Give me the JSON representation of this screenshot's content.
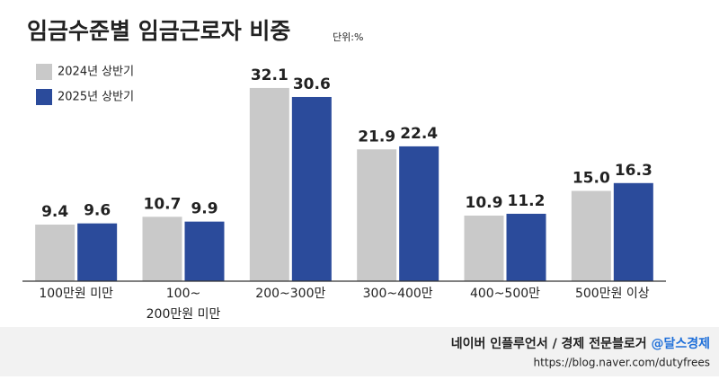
{
  "chart_data": {
    "type": "bar",
    "title": "임금수준별 임금근로자 비중",
    "unit": "단위:%",
    "categories": [
      "100만원 미만",
      "100~\n200만원 미만",
      "200~300만",
      "300~400만",
      "400~500만",
      "500만원 이상"
    ],
    "series": [
      {
        "name": "2024년 상반기",
        "color": "#c9c9c9",
        "values": [
          9.4,
          10.7,
          32.1,
          21.9,
          10.9,
          15.0
        ],
        "value_labels": [
          "9.4",
          "10.7",
          "32.1",
          "21.9",
          "10.9",
          "15.0"
        ]
      },
      {
        "name": "2025년 상반기",
        "color": "#2b4b9b",
        "values": [
          9.6,
          9.9,
          30.6,
          22.4,
          11.2,
          16.3
        ],
        "value_labels": [
          "9.6",
          "9.9",
          "30.6",
          "22.4",
          "11.2",
          "16.3"
        ]
      }
    ],
    "ylim": [
      0,
      35
    ],
    "legend": "top-left"
  },
  "footer": {
    "text": "네이버 인플루언서 / 경제 전문블로거 ",
    "handle": "@달스경제",
    "url": "https://blog.naver.com/dutyfrees"
  }
}
